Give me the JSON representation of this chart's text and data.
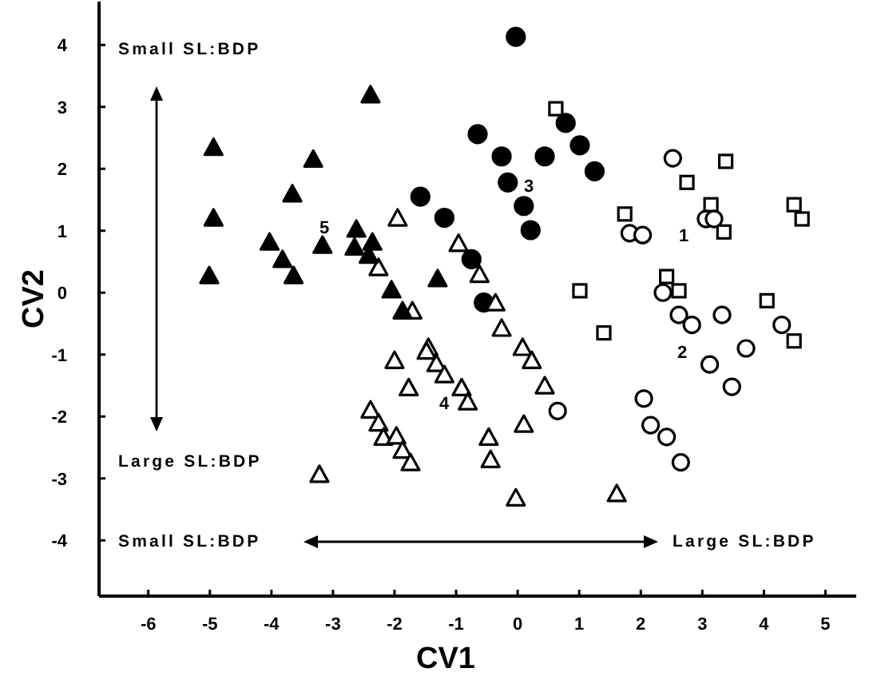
{
  "chart_data": {
    "type": "scatter",
    "xlabel": "CV1",
    "ylabel": "CV2",
    "xlim": [
      -6.8,
      5.5
    ],
    "ylim": [
      -4.9,
      4.7
    ],
    "xticks": [
      -6,
      -5,
      -4,
      -3,
      -2,
      -1,
      0,
      1,
      2,
      3,
      4,
      5
    ],
    "yticks": [
      -4,
      -3,
      -2,
      -1,
      0,
      1,
      2,
      3,
      4
    ],
    "grid": false,
    "series": [
      {
        "color": "#ffffff",
        "marker": "square",
        "x": [
          0.62,
          3.38,
          2.75,
          1.74,
          3.14,
          3.35,
          4.49,
          4.62,
          2.42,
          2.62,
          1.01,
          4.05,
          1.4,
          4.49
        ],
        "values": [
          2.97,
          2.12,
          1.78,
          1.27,
          1.42,
          0.98,
          1.42,
          1.19,
          0.26,
          0.03,
          0.03,
          -0.13,
          -0.65,
          -0.78
        ]
      },
      {
        "color": "#ffffff",
        "marker": "circle",
        "x": [
          2.52,
          1.82,
          2.03,
          3.06,
          3.19,
          2.36,
          2.62,
          2.83,
          3.32,
          4.29,
          3.71,
          3.12,
          3.48,
          2.05,
          2.16,
          2.42,
          2.65,
          0.65
        ],
        "values": [
          2.17,
          0.96,
          0.93,
          1.19,
          1.19,
          0.0,
          -0.36,
          -0.52,
          -0.36,
          -0.52,
          -0.9,
          -1.16,
          -1.52,
          -1.71,
          -2.14,
          -2.33,
          -2.74,
          -1.91
        ]
      },
      {
        "color": "#000000",
        "marker": "circle",
        "x": [
          -1.58,
          -1.19,
          -0.75,
          -0.55,
          -0.65,
          -0.03,
          0.78,
          1.01,
          -0.26,
          0.44,
          1.25,
          -0.16,
          0.1,
          0.21
        ],
        "values": [
          1.55,
          1.21,
          0.54,
          -0.16,
          2.56,
          4.13,
          2.74,
          2.38,
          2.2,
          2.2,
          1.96,
          1.78,
          1.4,
          1.01
        ]
      },
      {
        "color": "#ffffff",
        "marker": "triangle",
        "x": [
          -1.95,
          -2.26,
          -1.71,
          -0.96,
          -0.62,
          -1.45,
          -2.0,
          -1.48,
          -1.32,
          -1.19,
          -0.91,
          -0.81,
          -1.77,
          -2.39,
          -2.26,
          -2.18,
          -1.97,
          -1.87,
          -1.74,
          -3.22,
          -0.47,
          -0.44,
          -0.26,
          0.08,
          0.23,
          0.44,
          0.1,
          -0.03,
          1.61,
          -0.36
        ],
        "values": [
          1.19,
          0.39,
          -0.31,
          0.78,
          0.28,
          -0.9,
          -1.11,
          -0.96,
          -1.16,
          -1.34,
          -1.55,
          -1.78,
          -1.55,
          -1.91,
          -2.12,
          -2.35,
          -2.33,
          -2.56,
          -2.76,
          -2.95,
          -2.35,
          -2.71,
          -0.59,
          -0.9,
          -1.11,
          -1.52,
          -2.14,
          -3.33,
          -3.26,
          -0.18
        ]
      },
      {
        "color": "#000000",
        "marker": "triangle",
        "x": [
          -2.39,
          -4.94,
          -3.32,
          -3.66,
          -4.94,
          -5.01,
          -4.03,
          -3.82,
          -3.64,
          -3.17,
          -2.62,
          -2.36,
          -2.65,
          -2.42,
          -2.05,
          -1.87,
          -1.3
        ],
        "values": [
          3.18,
          2.33,
          2.14,
          1.58,
          1.19,
          0.26,
          0.8,
          0.52,
          0.26,
          0.75,
          1.01,
          0.8,
          0.72,
          0.59,
          0.03,
          -0.31,
          0.21
        ]
      }
    ],
    "annotations": [
      "1",
      "2",
      "3",
      "4",
      "5",
      "Small SL:BDP",
      "Large SL:BDP",
      "Small SL:BDP",
      "Large SL:BDP"
    ]
  }
}
